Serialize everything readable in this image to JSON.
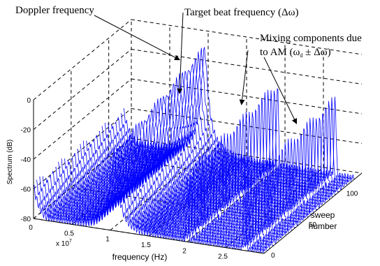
{
  "chart_data": {
    "type": "waterfall-line",
    "xlabel": "frequency (Hz)",
    "x_multiplier_label": "x 10",
    "x_multiplier_exp": "7",
    "ylabel": "Spectrum (dB)",
    "zlabel_line1": "sweep",
    "zlabel_line2": "number",
    "x_ticks": [
      "0",
      "0.5",
      "1",
      "1.5",
      "2",
      "2.5"
    ],
    "x_tick_values": [
      0,
      0.5,
      1,
      1.5,
      2,
      2.5
    ],
    "y_ticks": [
      "-80",
      "-60",
      "-40",
      "-20",
      "0"
    ],
    "y_tick_values": [
      -80,
      -60,
      -40,
      -20,
      0
    ],
    "z_ticks": [
      "0",
      "50",
      "100"
    ],
    "z_tick_values": [
      0,
      50,
      100
    ],
    "xlim": [
      0,
      3.0
    ],
    "ylim": [
      -80,
      0
    ],
    "zlim": [
      0,
      130
    ],
    "grid": true,
    "line_color": "#0000ff",
    "peaks": [
      {
        "name": "Doppler frequency",
        "x": 1.05,
        "y_range": [
          -42,
          -7
        ]
      },
      {
        "name": "Target beat frequency",
        "x": 2.0,
        "y_range": [
          -40,
          -22
        ]
      },
      {
        "name": "Mixing component",
        "x": 2.75,
        "y_range": [
          -40,
          -26
        ]
      }
    ]
  },
  "annotations": {
    "doppler": "Doppler frequency",
    "beat": "Target beat frequency (Δω)",
    "mixing_line1": "Mixing components due",
    "mixing_line2_prefix": "to AM (ω",
    "mixing_sub": "d",
    "mixing_line2_suffix": " ± Δω)"
  }
}
